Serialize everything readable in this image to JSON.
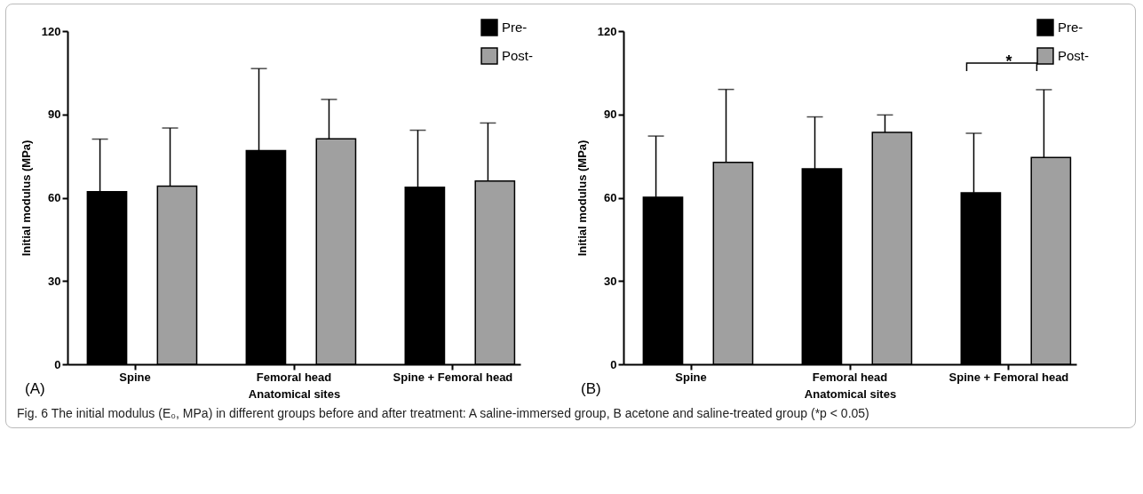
{
  "chart_data": [
    {
      "type": "bar",
      "ylabel": "Initial modulus (MPa)",
      "xlabel": "Anatomical sites",
      "categories": [
        "Spine",
        "Femoral head",
        "Spine + Femoral head"
      ],
      "series": [
        {
          "name": "Pre-",
          "color": "#000000",
          "values": [
            62.2,
            77.0,
            63.8
          ],
          "errors": [
            [
              62.2,
              81.1
            ],
            [
              77.0,
              106.5
            ],
            [
              63.8,
              84.3
            ]
          ]
        },
        {
          "name": "Post-",
          "color": "#a0a0a0",
          "values": [
            64.2,
            81.2,
            66.0
          ],
          "errors": [
            [
              64.2,
              85.1
            ],
            [
              81.2,
              95.4
            ],
            [
              66.0,
              86.9
            ]
          ]
        }
      ],
      "ylim": [
        0,
        120
      ],
      "yticks": [
        0,
        30,
        60,
        90,
        120
      ],
      "legend": "top right",
      "annotations": [
        "(A)",
        "Fig. 6 The initial modulus (E₀, MPa) in different groups before and after treatment: A saline-immersed group, B acetone and saline-treated group (*p < 0.05)"
      ]
    },
    {
      "type": "bar",
      "ylabel": "Initial modulus (MPa)",
      "xlabel": "Anatomical sites",
      "categories": [
        "Spine",
        "Femoral head",
        "Spine + Femoral head"
      ],
      "series": [
        {
          "name": "Pre-",
          "color": "#000000",
          "values": [
            60.2,
            70.4,
            61.8
          ],
          "errors": [
            [
              60.2,
              82.2
            ],
            [
              70.4,
              89.1
            ],
            [
              61.8,
              83.2
            ]
          ]
        },
        {
          "name": "Post-",
          "color": "#a0a0a0",
          "values": [
            72.7,
            83.5,
            74.5
          ],
          "errors": [
            [
              72.7,
              99.0
            ],
            [
              83.5,
              89.8
            ],
            [
              74.5,
              98.9
            ]
          ]
        }
      ],
      "ylim": [
        0,
        120
      ],
      "yticks": [
        0,
        30,
        60,
        90,
        120
      ],
      "legend": "top right",
      "annotations": [
        "(B)",
        "*"
      ]
    }
  ]
}
